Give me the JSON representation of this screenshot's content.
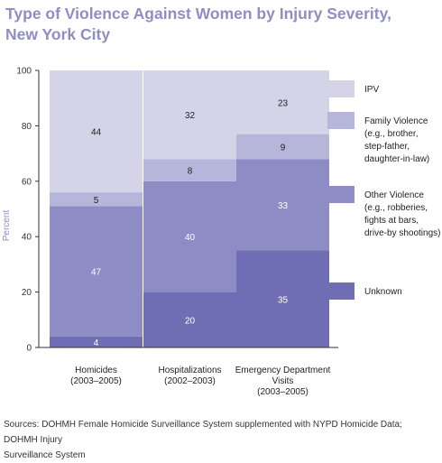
{
  "title_lines": [
    "Type of Violence Against Women by Injury Severity,",
    "New York City"
  ],
  "source_lines": [
    "Sources: DOHMH Female Homicide Surveillance System supplemented with NYPD Homicide Data; DOHMH Injury",
    "Surveillance System"
  ],
  "colors": {
    "ipv": "#d4d3e8",
    "family": "#b6b5da",
    "other": "#8d8cc4",
    "unknown": "#6f6eb4",
    "axis": "#333333",
    "ylabel": "#8e8ec4"
  },
  "chart_data": {
    "type": "bar",
    "stacked": true,
    "ylabel": "Percent",
    "xlabel": "",
    "ylim": [
      0,
      100
    ],
    "yticks": [
      0,
      20,
      40,
      60,
      80,
      100
    ],
    "categories": [
      [
        "Homicides",
        "(2003–2005)"
      ],
      [
        "Hospitalizations",
        "(2002–2003)"
      ],
      [
        "Emergency Department",
        "Visits",
        "(2003–2005)"
      ]
    ],
    "series": [
      {
        "name": "Unknown",
        "legend_lines": [
          "Unknown"
        ],
        "color_key": "unknown",
        "values": [
          4,
          20,
          35
        ]
      },
      {
        "name": "Other Violence",
        "legend_lines": [
          "Other Violence",
          "(e.g., robberies,",
          "fights at bars,",
          "drive-by shootings)"
        ],
        "color_key": "other",
        "values": [
          47,
          40,
          33
        ]
      },
      {
        "name": "Family Violence",
        "legend_lines": [
          "Family Violence",
          "(e.g., brother,",
          "step-father,",
          "daughter-in-law)"
        ],
        "color_key": "family",
        "values": [
          5,
          8,
          9
        ]
      },
      {
        "name": "IPV",
        "legend_lines": [
          "IPV"
        ],
        "color_key": "ipv",
        "values": [
          44,
          32,
          23
        ]
      }
    ],
    "legend_order": [
      "IPV",
      "Family Violence",
      "Other Violence",
      "Unknown"
    ]
  }
}
